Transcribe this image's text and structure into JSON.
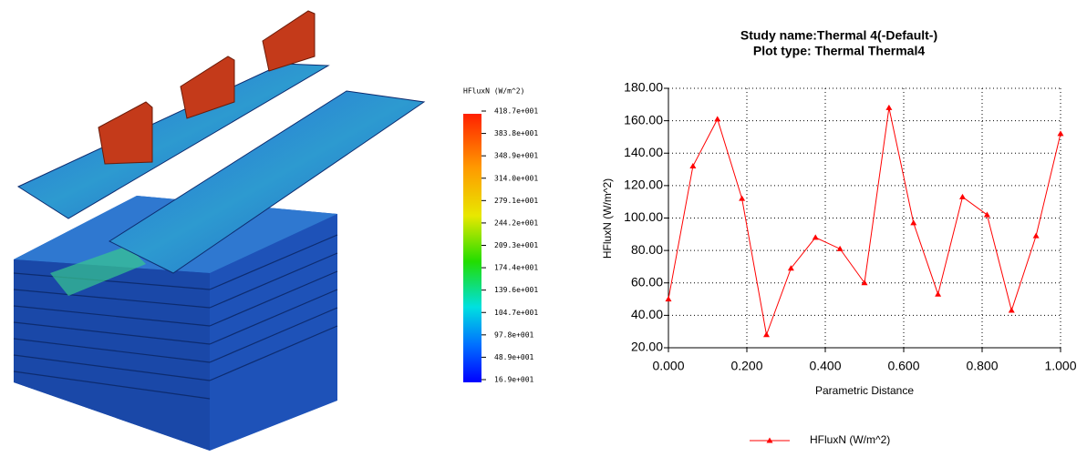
{
  "chart_data": {
    "type": "line",
    "title": "Study name:Thermal 4(-Default-)",
    "subtitle": "Plot type: Thermal Thermal4",
    "x_label": "Parametric Distance",
    "y_label": "HFluxN (W/m^2)",
    "x": [
      0,
      0.0625,
      0.125,
      0.1875,
      0.25,
      0.3125,
      0.375,
      0.4375,
      0.5,
      0.5625,
      0.625,
      0.6875,
      0.75,
      0.8125,
      0.875,
      0.9375,
      1.0
    ],
    "series": [
      {
        "name": "HFluxN (W/m^2)",
        "color": "#ff0000",
        "values": [
          50,
          132,
          161,
          112,
          28,
          69,
          88,
          81,
          60,
          168,
          97,
          53,
          113,
          102,
          43,
          89,
          152
        ]
      }
    ],
    "xlim": [
      0,
      1
    ],
    "ylim": [
      20,
      180
    ],
    "xticks": [
      {
        "value": 0,
        "label": "0.000"
      },
      {
        "value": 0.2,
        "label": "0.200"
      },
      {
        "value": 0.4,
        "label": "0.400"
      },
      {
        "value": 0.6,
        "label": "0.600"
      },
      {
        "value": 0.8,
        "label": "0.800"
      },
      {
        "value": 1,
        "label": "1.000"
      }
    ],
    "yticks": [
      {
        "value": 20,
        "label": "20.00"
      },
      {
        "value": 40,
        "label": "40.00"
      },
      {
        "value": 60,
        "label": "60.00"
      },
      {
        "value": 80,
        "label": "80.00"
      },
      {
        "value": 100,
        "label": "100.00"
      },
      {
        "value": 120,
        "label": "120.00"
      },
      {
        "value": 140,
        "label": "140.00"
      },
      {
        "value": 160,
        "label": "160.00"
      },
      {
        "value": 180,
        "label": "180.00"
      }
    ],
    "grid": true,
    "legend": "bottom"
  },
  "colorbar": {
    "title": "HFluxN (W/m^2)",
    "labels": [
      "418.7e+001",
      "383.8e+001",
      "348.9e+001",
      "314.0e+001",
      "279.1e+001",
      "244.2e+001",
      "209.3e+001",
      "174.4e+001",
      "139.6e+001",
      "104.7e+001",
      "97.8e+001",
      "48.9e+001",
      "16.9e+001"
    ]
  }
}
